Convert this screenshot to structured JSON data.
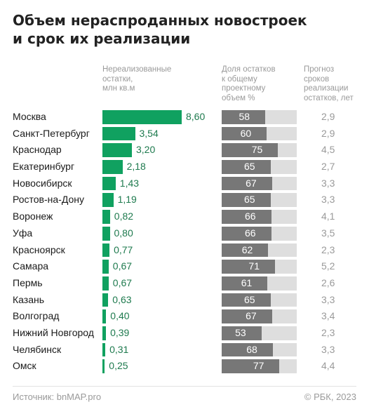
{
  "title": "Объем нераспроданных новостроек\nи срок их реализации",
  "columns": {
    "remain": "Нереализованные\nостатки,\nмлн кв.м",
    "share": "Доля остатков\nк общему\nпроектному\nобъем %",
    "term": "Прогноз\nсроков\nреализации\nостатков, лет"
  },
  "footer": {
    "source": "Источник: bnMAP.pro",
    "copyright": "© РБК, 2023"
  },
  "colors": {
    "green": "#10a160",
    "green_text": "#1e7a4e",
    "share_fill": "#777777",
    "share_track": "#dedede"
  },
  "chart_data": {
    "type": "bar",
    "categories": [
      "Москва",
      "Санкт-Петербург",
      "Краснодар",
      "Екатеринбург",
      "Новосибирск",
      "Ростов-на-Дону",
      "Воронеж",
      "Уфа",
      "Красноярск",
      "Самара",
      "Пермь",
      "Казань",
      "Волгоград",
      "Нижний Новгород",
      "Челябинск",
      "Омск"
    ],
    "series": [
      {
        "name": "Нереализованные остатки, млн кв.м",
        "values": [
          8.6,
          3.54,
          3.2,
          2.18,
          1.43,
          1.19,
          0.82,
          0.8,
          0.77,
          0.67,
          0.67,
          0.63,
          0.4,
          0.39,
          0.31,
          0.25
        ],
        "labels": [
          "8,60",
          "3,54",
          "3,20",
          "2,18",
          "1,43",
          "1,19",
          "0,82",
          "0,80",
          "0,77",
          "0,67",
          "0,67",
          "0,63",
          "0,40",
          "0,39",
          "0,31",
          "0,25"
        ]
      },
      {
        "name": "Доля остатков к общему проектному объем %",
        "values": [
          58,
          60,
          75,
          65,
          67,
          65,
          66,
          66,
          62,
          71,
          61,
          65,
          67,
          53,
          68,
          77
        ],
        "max": 100
      },
      {
        "name": "Прогноз сроков реализации остатков, лет",
        "values": [
          2.9,
          2.9,
          4.5,
          2.7,
          3.3,
          3.3,
          4.1,
          3.5,
          2.3,
          5.2,
          2.6,
          3.3,
          3.4,
          2.3,
          3.3,
          4.4
        ],
        "labels": [
          "2,9",
          "2,9",
          "4,5",
          "2,7",
          "3,3",
          "3,3",
          "4,1",
          "3,5",
          "2,3",
          "5,2",
          "2,6",
          "3,3",
          "3,4",
          "2,3",
          "3,3",
          "4,4"
        ]
      }
    ]
  }
}
